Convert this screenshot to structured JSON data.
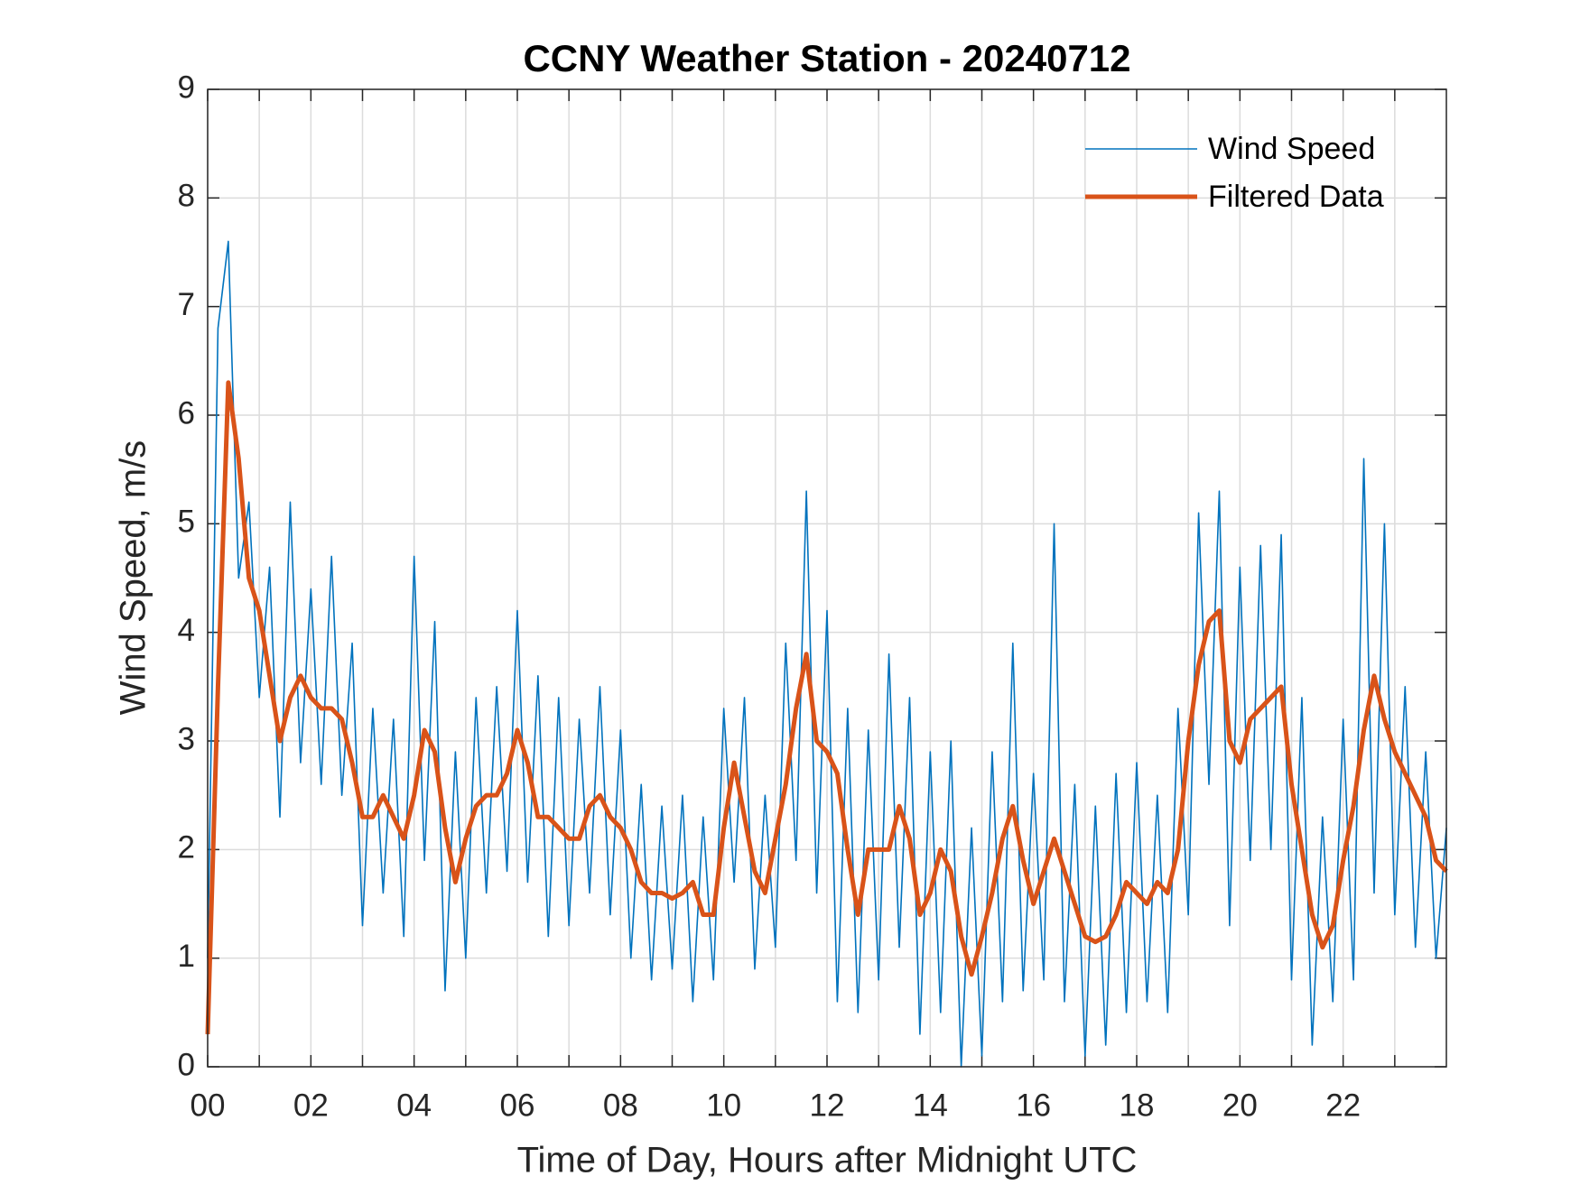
{
  "chart_data": {
    "type": "line",
    "title": "CCNY Weather Station - 20240712",
    "x_label": "Time of Day, Hours after Midnight UTC",
    "y_label": "Wind Speed, m/s",
    "x": [
      0,
      0.2,
      0.4,
      0.6,
      0.8,
      1,
      1.2,
      1.4,
      1.6,
      1.8,
      2,
      2.2,
      2.4,
      2.6,
      2.8,
      3,
      3.2,
      3.4,
      3.6,
      3.8,
      4,
      4.2,
      4.4,
      4.6,
      4.8,
      5,
      5.2,
      5.4,
      5.6,
      5.8,
      6,
      6.2,
      6.4,
      6.6,
      6.8,
      7,
      7.2,
      7.4,
      7.6,
      7.8,
      8,
      8.2,
      8.4,
      8.6,
      8.8,
      9,
      9.2,
      9.4,
      9.6,
      9.8,
      10,
      10.2,
      10.4,
      10.6,
      10.8,
      11,
      11.2,
      11.4,
      11.6,
      11.8,
      12,
      12.2,
      12.4,
      12.6,
      12.8,
      13,
      13.2,
      13.4,
      13.6,
      13.8,
      14,
      14.2,
      14.4,
      14.6,
      14.8,
      15,
      15.2,
      15.4,
      15.6,
      15.8,
      16,
      16.2,
      16.4,
      16.6,
      16.8,
      17,
      17.2,
      17.4,
      17.6,
      17.8,
      18,
      18.2,
      18.4,
      18.6,
      18.8,
      19,
      19.2,
      19.4,
      19.6,
      19.8,
      20,
      20.2,
      20.4,
      20.6,
      20.8,
      21,
      21.2,
      21.4,
      21.6,
      21.8,
      22,
      22.2,
      22.4,
      22.6,
      22.8,
      23,
      23.2,
      23.4,
      23.6,
      23.8,
      24
    ],
    "series": [
      {
        "name": "Wind Speed",
        "color": "#0072BD",
        "width": 1.6,
        "values": [
          1.0,
          6.8,
          7.6,
          4.5,
          5.2,
          3.4,
          4.6,
          2.3,
          5.2,
          2.8,
          4.4,
          2.6,
          4.7,
          2.5,
          3.9,
          1.3,
          3.3,
          1.6,
          3.2,
          1.2,
          4.7,
          1.9,
          4.1,
          0.7,
          2.9,
          1.0,
          3.4,
          1.6,
          3.5,
          1.8,
          4.2,
          1.7,
          3.6,
          1.2,
          3.4,
          1.3,
          3.2,
          1.6,
          3.5,
          1.4,
          3.1,
          1.0,
          2.6,
          0.8,
          2.4,
          0.9,
          2.5,
          0.6,
          2.3,
          0.8,
          3.3,
          1.7,
          3.4,
          0.9,
          2.5,
          1.1,
          3.9,
          1.9,
          5.3,
          1.6,
          4.2,
          0.6,
          3.3,
          0.5,
          3.1,
          0.8,
          3.8,
          1.1,
          3.4,
          0.3,
          2.9,
          0.5,
          3.0,
          0.0,
          2.2,
          0.1,
          2.9,
          0.6,
          3.9,
          0.7,
          2.7,
          0.8,
          5.0,
          0.6,
          2.6,
          0.1,
          2.4,
          0.2,
          2.7,
          0.5,
          2.8,
          0.6,
          2.5,
          0.5,
          3.3,
          1.4,
          5.1,
          2.6,
          5.3,
          1.3,
          4.6,
          1.9,
          4.8,
          2.0,
          4.9,
          0.8,
          3.4,
          0.2,
          2.3,
          0.6,
          3.2,
          0.8,
          5.6,
          1.6,
          5.0,
          1.4,
          3.5,
          1.1,
          2.9,
          1.0,
          2.2
        ]
      },
      {
        "name": "Filtered Data",
        "color": "#D95319",
        "width": 5,
        "values": [
          0.3,
          3.5,
          6.3,
          5.6,
          4.5,
          4.2,
          3.6,
          3.0,
          3.4,
          3.6,
          3.4,
          3.3,
          3.3,
          3.2,
          2.8,
          2.3,
          2.3,
          2.5,
          2.3,
          2.1,
          2.5,
          3.1,
          2.9,
          2.2,
          1.7,
          2.1,
          2.4,
          2.5,
          2.5,
          2.7,
          3.1,
          2.8,
          2.3,
          2.3,
          2.2,
          2.1,
          2.1,
          2.4,
          2.5,
          2.3,
          2.2,
          2.0,
          1.7,
          1.6,
          1.6,
          1.55,
          1.6,
          1.7,
          1.4,
          1.4,
          2.2,
          2.8,
          2.3,
          1.8,
          1.6,
          2.1,
          2.6,
          3.3,
          3.8,
          3.0,
          2.9,
          2.7,
          2.0,
          1.4,
          2.0,
          2.0,
          2.0,
          2.4,
          2.1,
          1.4,
          1.6,
          2.0,
          1.8,
          1.2,
          0.85,
          1.2,
          1.6,
          2.1,
          2.4,
          1.9,
          1.5,
          1.8,
          2.1,
          1.8,
          1.5,
          1.2,
          1.15,
          1.2,
          1.4,
          1.7,
          1.6,
          1.5,
          1.7,
          1.6,
          2.0,
          3.0,
          3.7,
          4.1,
          4.2,
          3.0,
          2.8,
          3.2,
          3.3,
          3.4,
          3.5,
          2.6,
          2.0,
          1.4,
          1.1,
          1.3,
          1.9,
          2.4,
          3.1,
          3.6,
          3.2,
          2.9,
          2.7,
          2.5,
          2.3,
          1.9,
          1.8
        ]
      }
    ],
    "xlim": [
      0,
      24
    ],
    "ylim": [
      0,
      9
    ],
    "xticks": [
      {
        "value": 0,
        "label": "00"
      },
      {
        "value": 1,
        "label": null
      },
      {
        "value": 2,
        "label": "02"
      },
      {
        "value": 3,
        "label": null
      },
      {
        "value": 4,
        "label": "04"
      },
      {
        "value": 5,
        "label": null
      },
      {
        "value": 6,
        "label": "06"
      },
      {
        "value": 7,
        "label": null
      },
      {
        "value": 8,
        "label": "08"
      },
      {
        "value": 9,
        "label": null
      },
      {
        "value": 10,
        "label": "10"
      },
      {
        "value": 11,
        "label": null
      },
      {
        "value": 12,
        "label": "12"
      },
      {
        "value": 13,
        "label": null
      },
      {
        "value": 14,
        "label": "14"
      },
      {
        "value": 15,
        "label": null
      },
      {
        "value": 16,
        "label": "16"
      },
      {
        "value": 17,
        "label": null
      },
      {
        "value": 18,
        "label": "18"
      },
      {
        "value": 19,
        "label": null
      },
      {
        "value": 20,
        "label": "20"
      },
      {
        "value": 21,
        "label": null
      },
      {
        "value": 22,
        "label": "22"
      },
      {
        "value": 23,
        "label": null
      }
    ],
    "yticks": [
      0,
      1,
      2,
      3,
      4,
      5,
      6,
      7,
      8,
      9
    ],
    "grid": true,
    "legend_position": "northeast"
  }
}
